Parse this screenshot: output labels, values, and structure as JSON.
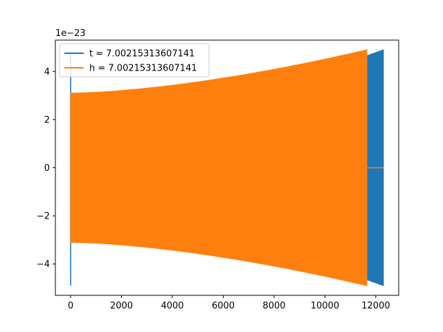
{
  "chart_data": {
    "type": "line",
    "title": "",
    "xlabel": "",
    "ylabel": "",
    "y_offset_text": "1e−23",
    "xlim": [
      -600,
      12900
    ],
    "ylim": [
      -5.3,
      5.3
    ],
    "xticks": [
      0,
      2000,
      4000,
      6000,
      8000,
      10000,
      12000
    ],
    "xtick_labels": [
      "0",
      "2000",
      "4000",
      "6000",
      "8000",
      "10000",
      "12000"
    ],
    "yticks": [
      -4,
      -2,
      0,
      2,
      4
    ],
    "ytick_labels": [
      "−4",
      "−2",
      "0",
      "2",
      "4"
    ],
    "grid": false,
    "legend_position": "upper-left",
    "series": [
      {
        "name": "t = 7.00215313607141",
        "color": "#1f77b4",
        "description_points": {
          "x_start": 0,
          "x_end": 12300,
          "spike_at_start": {
            "x": 0,
            "max": 4.7,
            "min": -4.9
          },
          "envelope_at_11650": 4.65,
          "envelope_at_12300": 4.9
        }
      },
      {
        "name": "h = 7.00215313607141",
        "color": "#ff7f0e",
        "description_points": {
          "x_start": 0,
          "x_end": 11650,
          "envelope_start": 3.1,
          "envelope_end": 4.9,
          "flat_after": {
            "x_start": 11650,
            "x_end": 12300,
            "y": 0
          }
        }
      }
    ]
  }
}
